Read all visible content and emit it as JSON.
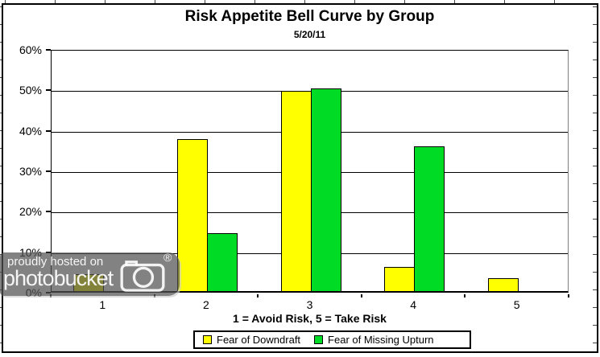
{
  "chart_data": {
    "type": "bar",
    "title": "Risk Appetite Bell Curve by Group",
    "subtitle": "5/20/11",
    "xlabel": "1 = Avoid Risk, 5 = Take Risk",
    "ylabel": "",
    "categories": [
      "1",
      "2",
      "3",
      "4",
      "5"
    ],
    "series": [
      {
        "name": "Fear of Downdraft",
        "color": "#FFFF00",
        "values": [
          4.1,
          37.5,
          49.4,
          6.0,
          3.1
        ]
      },
      {
        "name": "Fear of Missing Upturn",
        "color": "#00DC26",
        "values": [
          0,
          14.3,
          50.0,
          35.7,
          0
        ]
      }
    ],
    "ylim": [
      0,
      60
    ],
    "yticks": [
      0,
      10,
      20,
      30,
      40,
      50,
      60
    ],
    "ytick_labels": [
      "0%",
      "10%",
      "20%",
      "30%",
      "40%",
      "50%",
      "60%"
    ],
    "grid": true,
    "legend_position": "bottom",
    "bar_border_color": "#000000"
  },
  "watermark": {
    "line1": "proudly hosted on",
    "line2": "photobucket",
    "registered": "®",
    "icon": "camera-icon"
  }
}
